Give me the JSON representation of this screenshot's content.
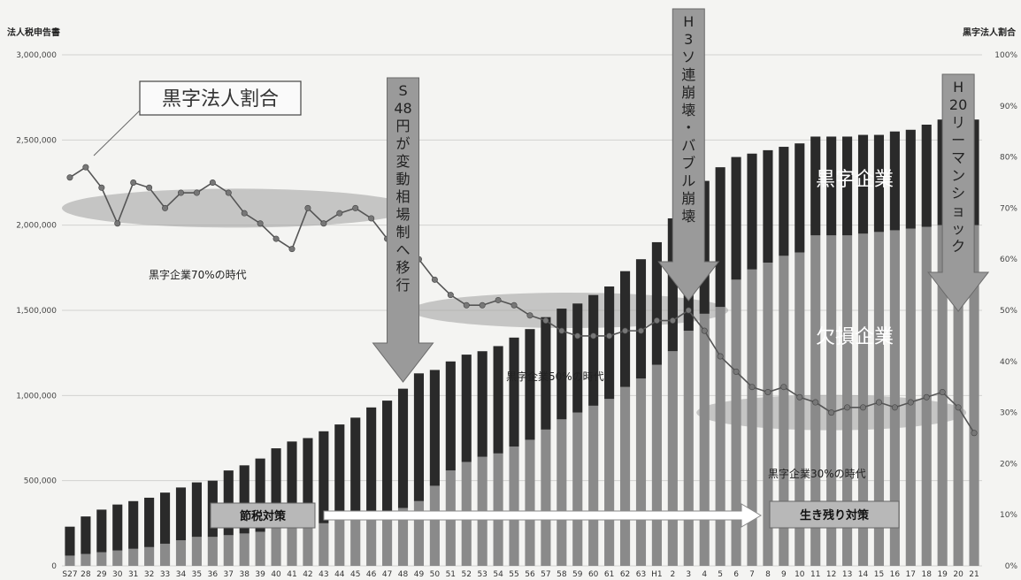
{
  "chart_data": {
    "type": "bar",
    "y_left_label": "法人税申告書",
    "y_right_label": "黒字法人割合",
    "ylim_left": [
      0,
      3000000
    ],
    "ylim_right": [
      0,
      100
    ],
    "y_left_ticks": [
      "0",
      "500,000",
      "1,000,000",
      "1,500,000",
      "2,000,000",
      "2,500,000",
      "3,000,000"
    ],
    "y_right_ticks": [
      "0%",
      "10%",
      "20%",
      "30%",
      "40%",
      "50%",
      "60%",
      "70%",
      "80%",
      "90%",
      "100%"
    ],
    "categories": [
      "S27",
      "28",
      "29",
      "30",
      "31",
      "32",
      "33",
      "34",
      "35",
      "36",
      "37",
      "38",
      "39",
      "40",
      "41",
      "42",
      "43",
      "44",
      "45",
      "46",
      "47",
      "48",
      "49",
      "50",
      "51",
      "52",
      "53",
      "54",
      "55",
      "56",
      "57",
      "58",
      "59",
      "60",
      "61",
      "62",
      "63",
      "H1",
      "2",
      "3",
      "4",
      "5",
      "6",
      "7",
      "8",
      "9",
      "10",
      "11",
      "12",
      "13",
      "14",
      "15",
      "16",
      "17",
      "18",
      "19",
      "20",
      "21"
    ],
    "series": [
      {
        "name": "黒字企業",
        "values": [
          170000,
          220000,
          250000,
          270000,
          280000,
          290000,
          300000,
          310000,
          320000,
          330000,
          380000,
          400000,
          430000,
          470000,
          500000,
          510000,
          540000,
          550000,
          570000,
          620000,
          650000,
          700000,
          750000,
          680000,
          640000,
          630000,
          620000,
          630000,
          640000,
          650000,
          660000,
          650000,
          640000,
          650000,
          660000,
          680000,
          700000,
          720000,
          780000,
          800000,
          780000,
          820000,
          720000,
          680000,
          660000,
          640000,
          640000,
          580000,
          580000,
          580000,
          580000,
          570000,
          580000,
          580000,
          600000,
          620000,
          640000,
          620000
        ]
      },
      {
        "name": "欠損企業",
        "values": [
          60000,
          70000,
          80000,
          90000,
          100000,
          110000,
          130000,
          150000,
          170000,
          170000,
          180000,
          190000,
          200000,
          220000,
          230000,
          240000,
          250000,
          280000,
          300000,
          310000,
          320000,
          340000,
          380000,
          470000,
          560000,
          610000,
          640000,
          660000,
          700000,
          740000,
          800000,
          860000,
          900000,
          940000,
          980000,
          1050000,
          1100000,
          1180000,
          1260000,
          1380000,
          1480000,
          1520000,
          1680000,
          1740000,
          1780000,
          1820000,
          1840000,
          1940000,
          1940000,
          1940000,
          1950000,
          1960000,
          1970000,
          1980000,
          1990000,
          2000000,
          1980000,
          2000000
        ]
      },
      {
        "name": "黒字法人割合",
        "axis": "right",
        "values": [
          76,
          78,
          74,
          67,
          75,
          74,
          70,
          73,
          73,
          75,
          73,
          69,
          67,
          64,
          62,
          70,
          67,
          69,
          70,
          68,
          64,
          68,
          60,
          56,
          53,
          51,
          51,
          52,
          51,
          49,
          48,
          46,
          45,
          45,
          45,
          46,
          46,
          48,
          48,
          50,
          46,
          41,
          38,
          35,
          34,
          35,
          33,
          32,
          30,
          31,
          31,
          32,
          31,
          32,
          33,
          34,
          31,
          26
        ]
      }
    ],
    "legend_box": "黒字法人割合",
    "bar_labels": [
      "黒字企業",
      "欠損企業"
    ],
    "eras": [
      "黒字企業70%の時代",
      "黒字企業50%の時代",
      "黒字企業30%の時代"
    ],
    "events": [
      {
        "era": "S",
        "year": "48",
        "text": "円が変動相場制へ移行"
      },
      {
        "era": "H",
        "year": "3",
        "text": "ソ連崩壊・バブル崩壊"
      },
      {
        "era": "H",
        "year": "20",
        "text": "リーマンショック"
      }
    ],
    "policies": [
      "節税対策",
      "生き残り対策"
    ]
  },
  "colors": {
    "bar_top": "#2a2a2a",
    "bar_bottom": "#8a8a8a",
    "line": "#555555",
    "arrow": "#9a9a9a",
    "band": "#9f9f9f",
    "background": "#f4f4f2"
  }
}
